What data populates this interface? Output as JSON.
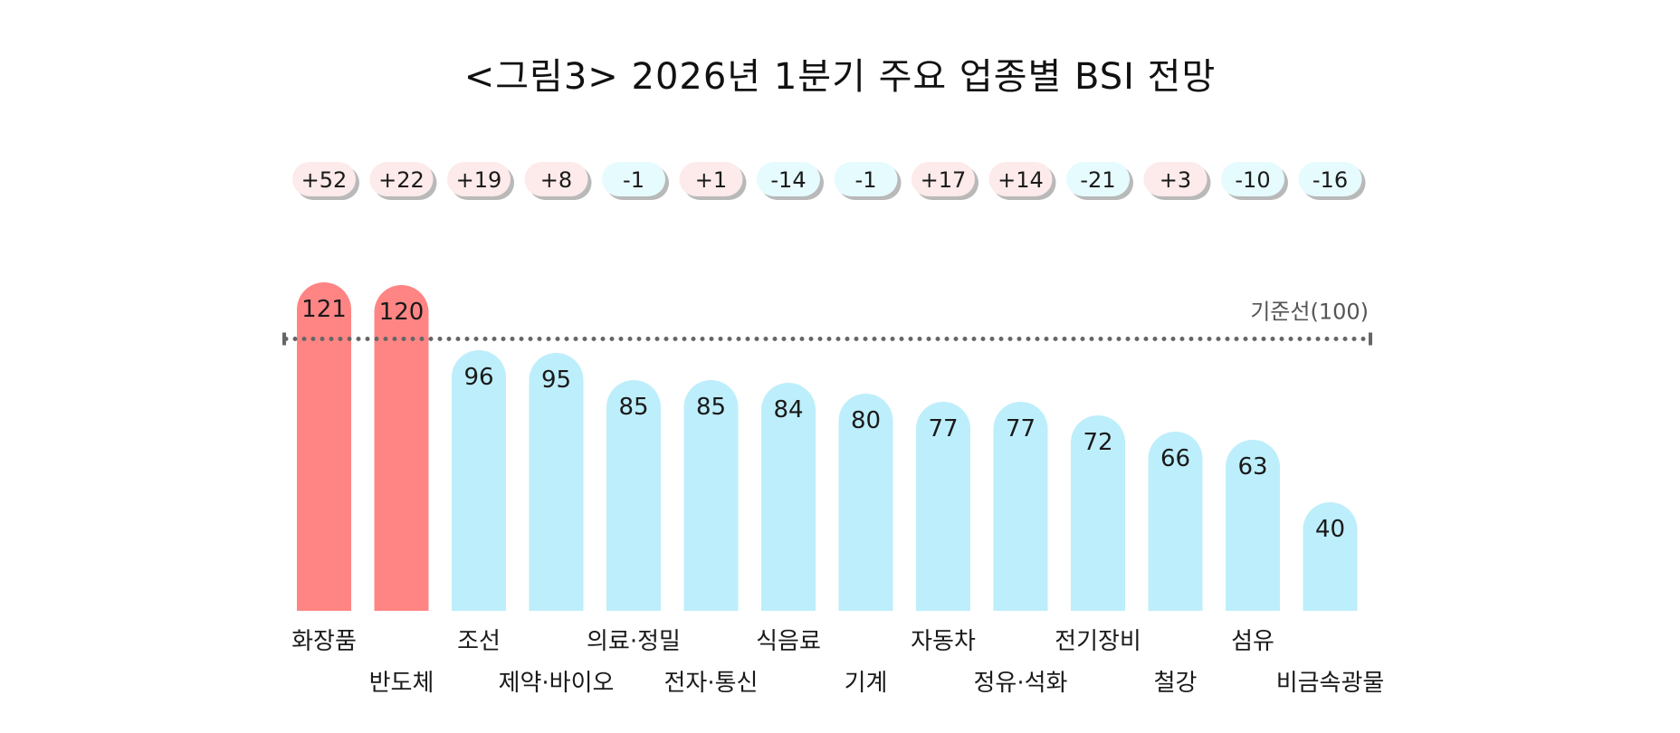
{
  "chart_data": {
    "type": "bar",
    "title": "<그림3> 2026년 1분기 주요 업종별 BSI 전망",
    "categories": [
      "화장품",
      "반도체",
      "조선",
      "제약·바이오",
      "의료·정밀",
      "전자·통신",
      "식음료",
      "기계",
      "자동차",
      "정유·석화",
      "전기장비",
      "철강",
      "섬유",
      "비금속광물"
    ],
    "values": [
      121,
      120,
      96,
      95,
      85,
      85,
      84,
      80,
      77,
      77,
      72,
      66,
      63,
      40
    ],
    "changes": [
      "+52",
      "+22",
      "+19",
      "+8",
      "-1",
      "+1",
      "-14",
      "-1",
      "+17",
      "+14",
      "-21",
      "+3",
      "-10",
      "-16"
    ],
    "reference_line": {
      "value": 100,
      "label": "기준선(100)"
    },
    "ylim": [
      0,
      130
    ],
    "grid": false,
    "legend": "none",
    "xlabel": "",
    "ylabel": ""
  },
  "colors": {
    "above_reference_bar": "#ff8585",
    "below_reference_bar": "#bdeefb",
    "positive_change_badge": "#fdeaea",
    "negative_change_badge": "#e6fbfd",
    "badge_shadow": "#b9b9b9",
    "reference_line": "#666666"
  }
}
